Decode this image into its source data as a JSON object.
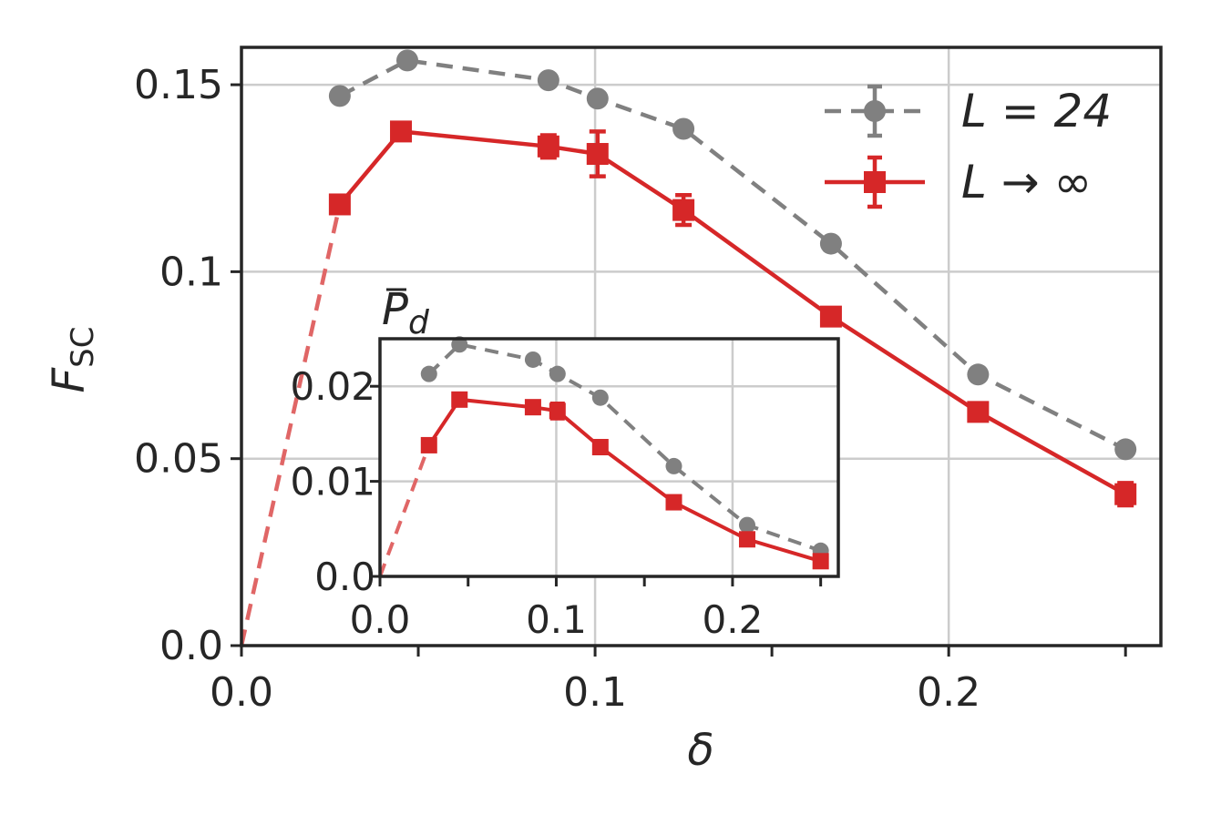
{
  "chart_data": [
    {
      "type": "line",
      "xlabel": "δ",
      "ylabel_main": "F",
      "ylabel_sub": "SC",
      "xlim": [
        0.0,
        0.26
      ],
      "ylim": [
        0.0,
        0.16
      ],
      "x_ticks": [
        0.0,
        0.1,
        0.2
      ],
      "x_tick_labels": [
        "0.0",
        "0.1",
        "0.2"
      ],
      "x_minor_ticks": [
        0.05,
        0.15,
        0.25
      ],
      "y_ticks": [
        0.0,
        0.05,
        0.1,
        0.15
      ],
      "y_tick_labels": [
        "0.0",
        "0.05",
        "0.1",
        "0.15"
      ],
      "grid": true,
      "legend_position": "top-right",
      "colors": {
        "L24": "#808080",
        "Linf": "#d62728",
        "extrapolation": "#e06666"
      },
      "series": [
        {
          "name": "L = 24",
          "style": "dashed",
          "marker": "circle",
          "x": [
            0.0278,
            0.0469,
            0.0868,
            0.1007,
            0.125,
            0.1667,
            0.2083,
            0.25
          ],
          "y": [
            0.147,
            0.1565,
            0.1512,
            0.1463,
            0.1382,
            0.1075,
            0.0725,
            0.0525
          ],
          "err": [
            0,
            0,
            0,
            0,
            0,
            0,
            0,
            0
          ]
        },
        {
          "name": "L → ∞",
          "style": "solid",
          "marker": "square",
          "x": [
            0.0278,
            0.0451,
            0.0868,
            0.1007,
            0.125,
            0.1667,
            0.2083,
            0.25
          ],
          "y": [
            0.118,
            0.1375,
            0.1335,
            0.1315,
            0.1165,
            0.088,
            0.0625,
            0.0405
          ],
          "err": [
            0,
            0,
            0.003,
            0.006,
            0.004,
            0,
            0,
            0.003
          ]
        },
        {
          "name": "",
          "style": "dashed",
          "marker": "none",
          "x": [
            0.0,
            0.0278
          ],
          "y": [
            0.0,
            0.118
          ]
        }
      ]
    },
    {
      "type": "line",
      "inset": true,
      "title_main": "P",
      "title_sub": "d",
      "xlim": [
        0.0,
        0.26
      ],
      "ylim": [
        0.0,
        0.025
      ],
      "x_ticks": [
        0.0,
        0.1,
        0.2
      ],
      "x_tick_labels": [
        "0.0",
        "0.1",
        "0.2"
      ],
      "x_minor_ticks": [
        0.05,
        0.15,
        0.25
      ],
      "y_ticks": [
        0.0,
        0.01,
        0.02
      ],
      "y_tick_labels": [
        "0.0",
        "0.01",
        "0.02"
      ],
      "grid": true,
      "series": [
        {
          "name": "L = 24",
          "style": "dashed",
          "marker": "circle",
          "x": [
            0.0278,
            0.0451,
            0.0868,
            0.1007,
            0.125,
            0.1667,
            0.2083,
            0.25
          ],
          "y": [
            0.0213,
            0.0244,
            0.0228,
            0.0213,
            0.0188,
            0.0116,
            0.0054,
            0.0027
          ],
          "err": [
            0,
            0,
            0,
            0,
            0,
            0,
            0,
            0
          ]
        },
        {
          "name": "L → ∞",
          "style": "solid",
          "marker": "square",
          "x": [
            0.0278,
            0.0451,
            0.0868,
            0.1007,
            0.125,
            0.1667,
            0.2083,
            0.25
          ],
          "y": [
            0.0138,
            0.0186,
            0.0178,
            0.0174,
            0.0136,
            0.0078,
            0.0039,
            0.0016
          ],
          "err": [
            0,
            0,
            0,
            0.0008,
            0,
            0,
            0,
            0
          ]
        },
        {
          "name": "",
          "style": "dashed",
          "marker": "none",
          "x": [
            0.0,
            0.0278
          ],
          "y": [
            0.0,
            0.0138
          ]
        }
      ]
    }
  ]
}
